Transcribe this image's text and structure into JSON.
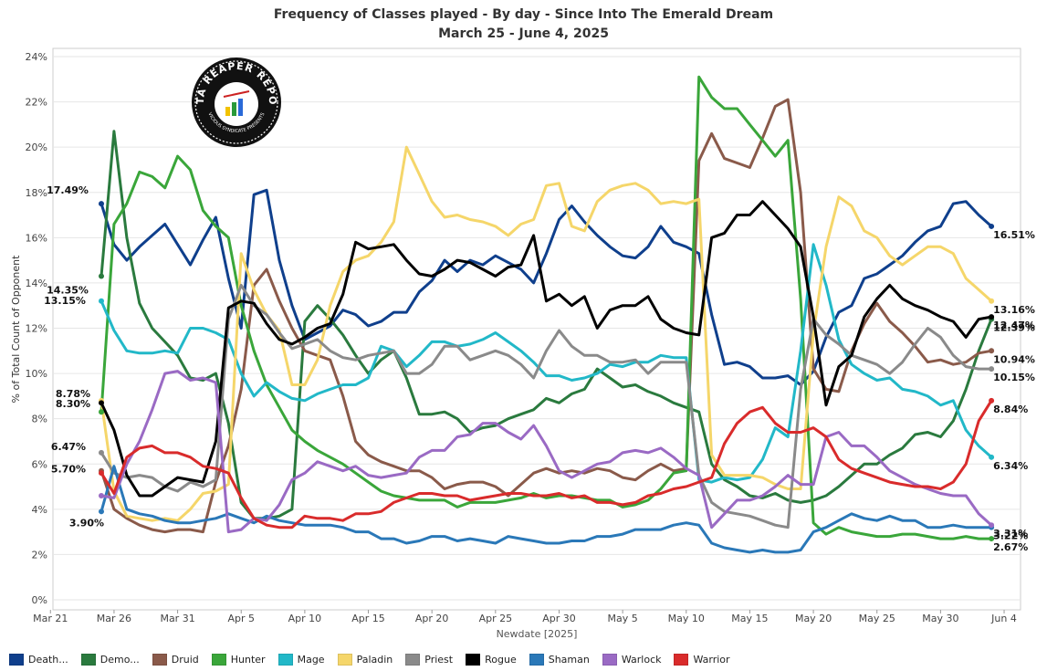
{
  "title": "Frequency of Classes played - By day - Since Into The Emerald Dream",
  "subtitle": "March 25 - June 4, 2025",
  "logo": {
    "text_top": "DATA REAPER REPORT",
    "text_bottom": "VICIOUS SYNDICATE PRESENTS"
  },
  "chart_data": {
    "type": "line",
    "title": "Frequency of Classes played - By day - Since Into The Emerald Dream",
    "subtitle": "March 25 - June 4, 2025",
    "xlabel": "Newdate [2025]",
    "ylabel": "% of Total Count of Opponent",
    "ylim": [
      0,
      24
    ],
    "yticks": [
      "0%",
      "2%",
      "4%",
      "6%",
      "8%",
      "10%",
      "12%",
      "14%",
      "16%",
      "18%",
      "20%",
      "22%",
      "24%"
    ],
    "xticks": [
      "Mar 21",
      "Mar 26",
      "Mar 31",
      "Apr 5",
      "Apr 10",
      "Apr 15",
      "Apr 20",
      "Apr 25",
      "Apr 30",
      "May 5",
      "May 10",
      "May 15",
      "May 20",
      "May 25",
      "May 30",
      "Jun 4"
    ],
    "x_start": "2025-03-25",
    "grid": true,
    "legend_position": "bottom",
    "series": [
      {
        "name": "Death...",
        "color": "#0f3f8c",
        "end_label": "16.51%",
        "start_label": "17.49%",
        "values": [
          17.5,
          15.7,
          15.0,
          15.6,
          16.1,
          16.6,
          15.7,
          14.8,
          15.9,
          16.9,
          14.2,
          12.0,
          17.9,
          18.1,
          15.0,
          13.0,
          11.5,
          11.8,
          12.1,
          12.8,
          12.6,
          12.1,
          12.3,
          12.7,
          12.7,
          13.6,
          14.1,
          15.0,
          14.5,
          15.0,
          14.8,
          15.2,
          14.9,
          14.6,
          14.0,
          15.3,
          16.8,
          17.4,
          16.7,
          16.1,
          15.6,
          15.2,
          15.1,
          15.6,
          16.5,
          15.8,
          15.6,
          15.3,
          12.6,
          10.4,
          10.5,
          10.3,
          9.8,
          9.8,
          9.9,
          9.5,
          10.1,
          11.6,
          12.7,
          13.0,
          14.2,
          14.4,
          14.8,
          15.2,
          15.8,
          16.3,
          16.5,
          17.5,
          17.6,
          17.0,
          16.5
        ]
      },
      {
        "name": "Demo...",
        "color": "#2a7a3e",
        "end_label": "12.39%",
        "start_label": "14.35%",
        "values": [
          14.3,
          20.7,
          16.0,
          13.1,
          12.0,
          11.4,
          10.8,
          9.8,
          9.7,
          10.0,
          7.8,
          4.3,
          3.6,
          3.6,
          3.7,
          4.0,
          12.3,
          13.0,
          12.4,
          11.7,
          10.8,
          10.0,
          10.6,
          11.0,
          9.8,
          8.2,
          8.2,
          8.3,
          8.0,
          7.4,
          7.6,
          7.7,
          8.0,
          8.2,
          8.4,
          8.9,
          8.7,
          9.1,
          9.3,
          10.2,
          9.8,
          9.4,
          9.5,
          9.2,
          9.0,
          8.7,
          8.5,
          8.3,
          6.0,
          5.3,
          5.0,
          4.6,
          4.5,
          4.7,
          4.4,
          4.3,
          4.4,
          4.6,
          5.0,
          5.5,
          6.0,
          6.0,
          6.4,
          6.7,
          7.3,
          7.4,
          7.2,
          7.9,
          9.3,
          11.0,
          12.4
        ]
      },
      {
        "name": "Druid",
        "color": "#8a5a4a",
        "end_label": "10.94%",
        "start_label": "5.70%",
        "values": [
          5.7,
          4.0,
          3.6,
          3.3,
          3.1,
          3.0,
          3.1,
          3.1,
          3.0,
          5.2,
          6.8,
          9.3,
          13.9,
          14.6,
          13.2,
          12.0,
          11.0,
          10.8,
          10.6,
          9.0,
          7.0,
          6.4,
          6.1,
          5.9,
          5.7,
          5.7,
          5.4,
          4.9,
          5.1,
          5.2,
          5.2,
          5.0,
          4.6,
          5.1,
          5.6,
          5.8,
          5.6,
          5.7,
          5.6,
          5.8,
          5.7,
          5.4,
          5.3,
          5.7,
          6.0,
          5.7,
          5.8,
          19.4,
          20.6,
          19.5,
          19.3,
          19.1,
          20.4,
          21.8,
          22.1,
          18.0,
          10.2,
          9.3,
          9.2,
          11.0,
          12.2,
          13.1,
          12.3,
          11.8,
          11.2,
          10.5,
          10.6,
          10.4,
          10.5,
          10.9,
          11.0
        ]
      },
      {
        "name": "Hunter",
        "color": "#3aa63a",
        "end_label": "2.67%",
        "start_label": "8.30%",
        "values": [
          8.3,
          16.6,
          17.5,
          18.9,
          18.7,
          18.2,
          19.6,
          19.0,
          17.2,
          16.5,
          16.0,
          13.0,
          11.0,
          9.5,
          8.5,
          7.5,
          7.0,
          6.6,
          6.3,
          6.0,
          5.6,
          5.2,
          4.8,
          4.6,
          4.5,
          4.4,
          4.4,
          4.4,
          4.1,
          4.3,
          4.3,
          4.3,
          4.4,
          4.5,
          4.7,
          4.5,
          4.6,
          4.6,
          4.5,
          4.4,
          4.4,
          4.1,
          4.2,
          4.4,
          4.9,
          5.6,
          5.7,
          23.1,
          22.2,
          21.7,
          21.7,
          21.0,
          20.3,
          19.6,
          20.3,
          13.3,
          3.4,
          2.9,
          3.2,
          3.0,
          2.9,
          2.8,
          2.8,
          2.9,
          2.9,
          2.8,
          2.7,
          2.7,
          2.8,
          2.7,
          2.7
        ]
      },
      {
        "name": "Mage",
        "color": "#22b8c8",
        "end_label": "6.34%",
        "start_label": "13.15%",
        "values": [
          13.2,
          11.9,
          11.0,
          10.9,
          10.9,
          11.0,
          10.9,
          12.0,
          12.0,
          11.8,
          11.5,
          10.0,
          9.0,
          9.6,
          9.2,
          8.9,
          8.8,
          9.1,
          9.3,
          9.5,
          9.5,
          9.8,
          11.2,
          11.0,
          10.3,
          10.8,
          11.4,
          11.4,
          11.2,
          11.3,
          11.5,
          11.8,
          11.4,
          11.0,
          10.5,
          9.9,
          9.9,
          9.7,
          9.8,
          10.0,
          10.4,
          10.3,
          10.5,
          10.5,
          10.8,
          10.7,
          10.7,
          5.3,
          5.2,
          5.4,
          5.3,
          5.4,
          6.2,
          7.6,
          7.2,
          11.0,
          15.7,
          13.9,
          11.5,
          10.4,
          10.0,
          9.7,
          9.8,
          9.3,
          9.2,
          9.0,
          8.6,
          8.8,
          7.5,
          6.8,
          6.3
        ]
      },
      {
        "name": "Paladin",
        "color": "#f5d66a",
        "end_label": "13.16%",
        "start_label": "8.78%",
        "values": [
          8.8,
          4.8,
          3.7,
          3.6,
          3.5,
          3.6,
          3.5,
          4.0,
          4.7,
          4.8,
          5.1,
          15.3,
          13.7,
          12.6,
          11.9,
          9.5,
          9.5,
          10.6,
          13.0,
          14.5,
          15.0,
          15.2,
          15.8,
          16.7,
          20.0,
          18.8,
          17.6,
          16.9,
          17.0,
          16.8,
          16.7,
          16.5,
          16.1,
          16.6,
          16.8,
          18.3,
          18.4,
          16.5,
          16.3,
          17.6,
          18.1,
          18.3,
          18.4,
          18.1,
          17.5,
          17.6,
          17.5,
          17.7,
          6.4,
          5.5,
          5.5,
          5.5,
          5.4,
          5.1,
          4.9,
          4.9,
          11.8,
          15.6,
          17.8,
          17.4,
          16.3,
          16.0,
          15.2,
          14.8,
          15.2,
          15.6,
          15.6,
          15.3,
          14.2,
          13.7,
          13.2
        ]
      },
      {
        "name": "Priest",
        "color": "#8a8a8a",
        "end_label": "10.15%",
        "start_label": "6.47%",
        "values": [
          6.5,
          5.6,
          5.4,
          5.5,
          5.4,
          5.0,
          4.8,
          5.2,
          5.0,
          5.3,
          12.4,
          13.9,
          13.0,
          12.6,
          11.8,
          11.1,
          11.3,
          11.5,
          11.0,
          10.7,
          10.6,
          10.8,
          10.9,
          11.0,
          10.0,
          10.0,
          10.4,
          11.2,
          11.2,
          10.6,
          10.8,
          11.0,
          10.8,
          10.4,
          9.8,
          11.0,
          11.9,
          11.2,
          10.8,
          10.8,
          10.5,
          10.5,
          10.6,
          10.0,
          10.5,
          10.5,
          10.5,
          5.5,
          4.3,
          3.9,
          3.8,
          3.7,
          3.5,
          3.3,
          3.2,
          9.3,
          12.4,
          11.7,
          11.3,
          10.8,
          10.6,
          10.4,
          10.0,
          10.5,
          11.3,
          12.0,
          11.6,
          10.8,
          10.3,
          10.2,
          10.2
        ]
      },
      {
        "name": "Rogue",
        "color": "#000000",
        "end_label": "12.47%",
        "start_label": "",
        "values": [
          8.7,
          7.5,
          5.5,
          4.6,
          4.6,
          5.0,
          5.4,
          5.3,
          5.2,
          7.0,
          12.9,
          13.2,
          13.1,
          12.2,
          11.5,
          11.3,
          11.6,
          12.0,
          12.2,
          13.5,
          15.8,
          15.5,
          15.6,
          15.7,
          15.0,
          14.4,
          14.3,
          14.6,
          15.0,
          14.9,
          14.6,
          14.3,
          14.7,
          14.8,
          16.1,
          13.2,
          13.5,
          13.0,
          13.4,
          12.0,
          12.8,
          13.0,
          13.0,
          13.4,
          12.4,
          12.0,
          11.8,
          11.7,
          16.0,
          16.2,
          17.0,
          17.0,
          17.6,
          17.0,
          16.4,
          15.6,
          12.5,
          8.6,
          10.3,
          10.8,
          12.5,
          13.3,
          13.9,
          13.3,
          13.0,
          12.8,
          12.5,
          12.3,
          11.6,
          12.4,
          12.5
        ]
      },
      {
        "name": "Shaman",
        "color": "#2a78b8",
        "end_label": "3.22%",
        "start_label": "3.90%",
        "values": [
          3.9,
          5.9,
          4.0,
          3.8,
          3.7,
          3.5,
          3.4,
          3.4,
          3.5,
          3.6,
          3.8,
          3.6,
          3.4,
          3.7,
          3.5,
          3.4,
          3.3,
          3.3,
          3.3,
          3.2,
          3.0,
          3.0,
          2.7,
          2.7,
          2.5,
          2.6,
          2.8,
          2.8,
          2.6,
          2.7,
          2.6,
          2.5,
          2.8,
          2.7,
          2.6,
          2.5,
          2.5,
          2.6,
          2.6,
          2.8,
          2.8,
          2.9,
          3.1,
          3.1,
          3.1,
          3.3,
          3.4,
          3.3,
          2.5,
          2.3,
          2.2,
          2.1,
          2.2,
          2.1,
          2.1,
          2.2,
          3.0,
          3.2,
          3.5,
          3.8,
          3.6,
          3.5,
          3.7,
          3.5,
          3.5,
          3.2,
          3.2,
          3.3,
          3.2,
          3.2,
          3.2
        ]
      },
      {
        "name": "Warlock",
        "color": "#9a6ac4",
        "end_label": "3.31%",
        "start_label": "",
        "values": [
          4.6,
          4.5,
          6.0,
          7.0,
          8.4,
          10.0,
          10.1,
          9.7,
          9.8,
          9.6,
          3.0,
          3.1,
          3.6,
          3.5,
          4.2,
          5.3,
          5.6,
          6.1,
          5.9,
          5.7,
          5.9,
          5.5,
          5.4,
          5.5,
          5.6,
          6.3,
          6.6,
          6.6,
          7.2,
          7.3,
          7.8,
          7.8,
          7.4,
          7.1,
          7.7,
          6.8,
          5.7,
          5.4,
          5.7,
          6.0,
          6.1,
          6.5,
          6.6,
          6.5,
          6.7,
          6.3,
          5.8,
          5.5,
          3.2,
          3.8,
          4.4,
          4.4,
          4.6,
          5.0,
          5.5,
          5.1,
          5.1,
          7.2,
          7.4,
          6.8,
          6.8,
          6.3,
          5.7,
          5.4,
          5.1,
          4.9,
          4.7,
          4.6,
          4.6,
          3.8,
          3.3
        ]
      },
      {
        "name": "Warrior",
        "color": "#d92b2b",
        "end_label": "8.84%",
        "start_label": "",
        "values": [
          5.6,
          4.7,
          6.3,
          6.7,
          6.8,
          6.5,
          6.5,
          6.3,
          5.9,
          5.8,
          5.6,
          4.5,
          3.6,
          3.3,
          3.2,
          3.2,
          3.7,
          3.6,
          3.6,
          3.5,
          3.8,
          3.8,
          3.9,
          4.3,
          4.5,
          4.7,
          4.7,
          4.6,
          4.6,
          4.4,
          4.5,
          4.6,
          4.7,
          4.7,
          4.6,
          4.6,
          4.7,
          4.5,
          4.6,
          4.3,
          4.3,
          4.2,
          4.3,
          4.6,
          4.7,
          4.9,
          5.0,
          5.2,
          5.4,
          6.9,
          7.8,
          8.3,
          8.5,
          7.8,
          7.4,
          7.4,
          7.6,
          7.2,
          6.2,
          5.8,
          5.6,
          5.4,
          5.2,
          5.1,
          5.0,
          5.0,
          4.9,
          5.2,
          6.0,
          7.9,
          8.8
        ]
      }
    ]
  }
}
